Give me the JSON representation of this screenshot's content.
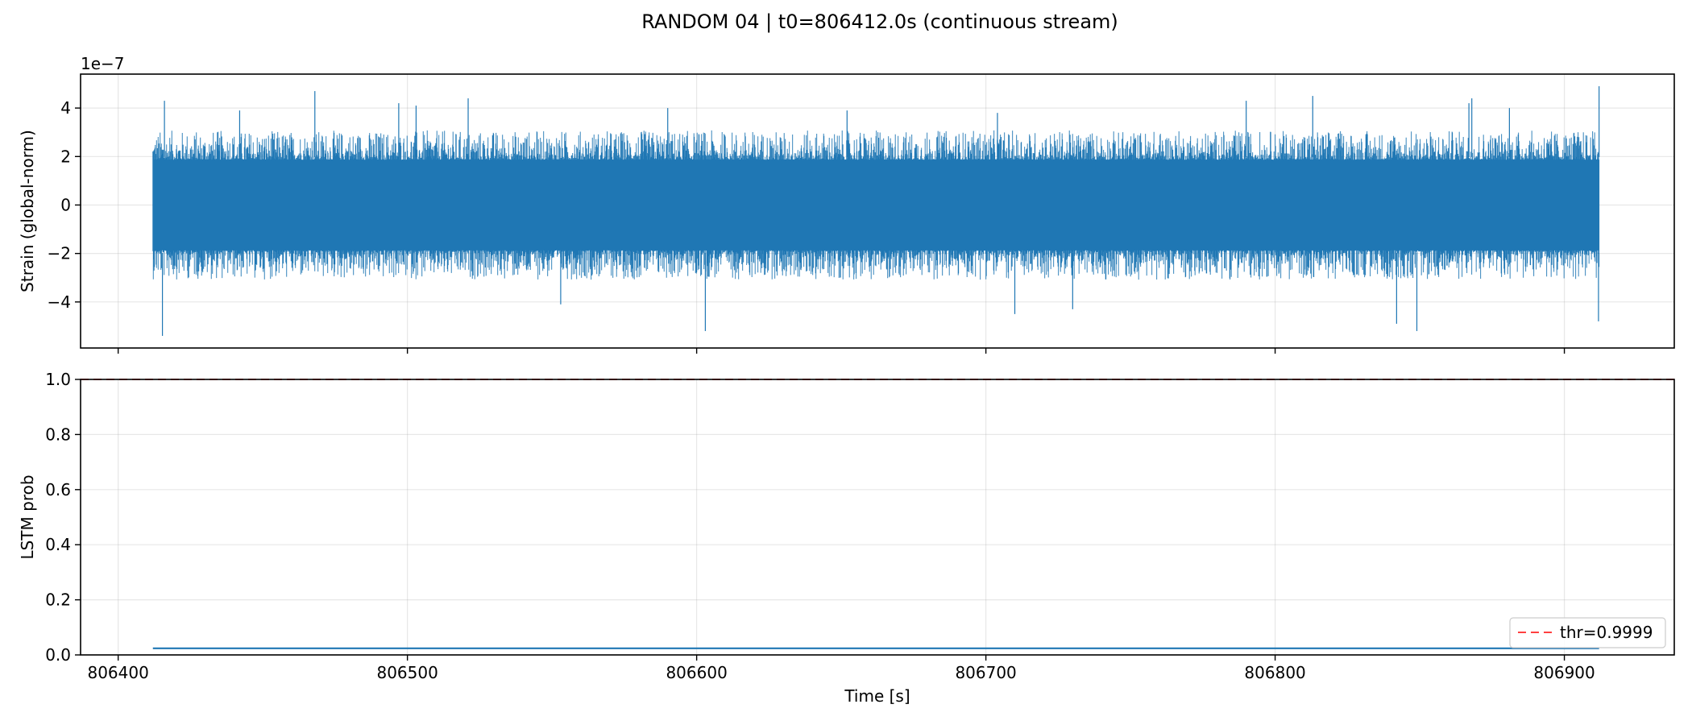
{
  "figure": {
    "title": "RANDOM 04 | t0=806412.0s (continuous stream)"
  },
  "chart_data": [
    {
      "type": "line",
      "panel": "strain",
      "ylabel": "Strain (global-norm)",
      "xlabel": "",
      "offset_label": "1e−7",
      "xlim": [
        806387,
        806938
      ],
      "ylim": [
        -5.9,
        5.4
      ],
      "x_ticks": [
        806400,
        806500,
        806600,
        806700,
        806800,
        806900
      ],
      "y_ticks": [
        -4,
        -2,
        0,
        2,
        4
      ],
      "y_tick_labels": [
        "−4",
        "−2",
        "0",
        "2",
        "4"
      ],
      "grid": true,
      "series": [
        {
          "color": "#1f77b4",
          "x_range": [
            806412,
            806912
          ],
          "typical_envelope": [
            -2.2,
            2.2
          ],
          "peaks": [
            {
              "x": 806415.3,
              "y": -5.4
            },
            {
              "x": 806416.0,
              "y": 4.3
            },
            {
              "x": 806442.0,
              "y": 3.9
            },
            {
              "x": 806468.0,
              "y": 4.7
            },
            {
              "x": 806497.0,
              "y": 4.2
            },
            {
              "x": 806503.0,
              "y": 4.1
            },
            {
              "x": 806521.0,
              "y": 4.4
            },
            {
              "x": 806553.0,
              "y": -4.1
            },
            {
              "x": 806590.0,
              "y": 4.0
            },
            {
              "x": 806603.0,
              "y": -5.2
            },
            {
              "x": 806652.0,
              "y": 3.9
            },
            {
              "x": 806704.0,
              "y": 3.8
            },
            {
              "x": 806710.0,
              "y": -4.5
            },
            {
              "x": 806730.0,
              "y": -4.3
            },
            {
              "x": 806790.0,
              "y": 4.3
            },
            {
              "x": 806813.0,
              "y": 4.5
            },
            {
              "x": 806842.0,
              "y": -4.9
            },
            {
              "x": 806849.0,
              "y": -5.2
            },
            {
              "x": 806867.0,
              "y": 4.2
            },
            {
              "x": 806868.0,
              "y": 4.4
            },
            {
              "x": 806881.0,
              "y": 4.0
            },
            {
              "x": 806912.0,
              "y": 4.9
            },
            {
              "x": 806911.8,
              "y": -4.8
            }
          ]
        }
      ]
    },
    {
      "type": "line",
      "panel": "lstm",
      "ylabel": "LSTM prob",
      "xlabel": "Time [s]",
      "xlim": [
        806387,
        806938
      ],
      "ylim": [
        0.0,
        1.0
      ],
      "x_ticks": [
        806400,
        806500,
        806600,
        806700,
        806800,
        806900
      ],
      "y_ticks": [
        0.0,
        0.2,
        0.4,
        0.6,
        0.8,
        1.0
      ],
      "y_tick_labels": [
        "0.0",
        "0.2",
        "0.4",
        "0.6",
        "0.8",
        "1.0"
      ],
      "grid": true,
      "legend": "lower-right",
      "series": [
        {
          "color": "#1f77b4",
          "x": [
            806412,
            806912
          ],
          "y": [
            0.024,
            0.024
          ]
        }
      ],
      "threshold": {
        "label": "thr=0.9999",
        "value": 0.9999,
        "color": "#ff0000",
        "style": "dashed"
      }
    }
  ]
}
